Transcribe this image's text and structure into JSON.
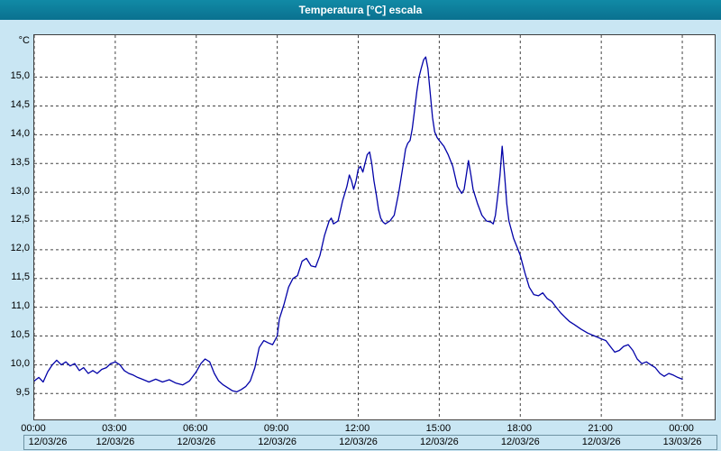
{
  "window": {
    "title": "Temperatura [°C] escala"
  },
  "chart_data": {
    "type": "line",
    "title": "Temperatura [°C] escala",
    "ylabel": "°C",
    "xlabel": "",
    "grid": true,
    "legend": "none",
    "xlim": [
      0,
      25.2
    ],
    "ylim": [
      9.05,
      15.73
    ],
    "colors": {
      "line": "#0202a8",
      "grid": "#444444",
      "plot_background": "#ffffff",
      "page_background": "#c9e6f3",
      "titlebar": "#0a7190"
    },
    "y_ticks": [
      {
        "v": 9.5,
        "label": "9,5"
      },
      {
        "v": 10.0,
        "label": "10,0"
      },
      {
        "v": 10.5,
        "label": "10,5"
      },
      {
        "v": 11.0,
        "label": "11,0"
      },
      {
        "v": 11.5,
        "label": "11,5"
      },
      {
        "v": 12.0,
        "label": "12,0"
      },
      {
        "v": 12.5,
        "label": "12,5"
      },
      {
        "v": 13.0,
        "label": "13,0"
      },
      {
        "v": 13.5,
        "label": "13,5"
      },
      {
        "v": 14.0,
        "label": "14,0"
      },
      {
        "v": 14.5,
        "label": "14,5"
      },
      {
        "v": 15.0,
        "label": "15,0"
      }
    ],
    "x_ticks": [
      {
        "hour": 0,
        "time": "00:00",
        "date": "12/03/26"
      },
      {
        "hour": 3,
        "time": "03:00",
        "date": "12/03/26"
      },
      {
        "hour": 6,
        "time": "06:00",
        "date": "12/03/26"
      },
      {
        "hour": 9,
        "time": "09:00",
        "date": "12/03/26"
      },
      {
        "hour": 12,
        "time": "12:00",
        "date": "12/03/26"
      },
      {
        "hour": 15,
        "time": "15:00",
        "date": "12/03/26"
      },
      {
        "hour": 18,
        "time": "18:00",
        "date": "12/03/26"
      },
      {
        "hour": 21,
        "time": "21:00",
        "date": "12/03/26"
      },
      {
        "hour": 24,
        "time": "00:00",
        "date": "13/03/26"
      }
    ],
    "series": [
      {
        "name": "Temperatura",
        "color": "#0202a8",
        "points": [
          [
            0,
            9.72
          ],
          [
            0.17,
            9.78
          ],
          [
            0.33,
            9.7
          ],
          [
            0.5,
            9.88
          ],
          [
            0.67,
            10.0
          ],
          [
            0.83,
            10.08
          ],
          [
            1,
            10.0
          ],
          [
            1.17,
            10.05
          ],
          [
            1.33,
            9.98
          ],
          [
            1.5,
            10.02
          ],
          [
            1.67,
            9.9
          ],
          [
            1.83,
            9.95
          ],
          [
            2,
            9.85
          ],
          [
            2.17,
            9.9
          ],
          [
            2.33,
            9.85
          ],
          [
            2.5,
            9.92
          ],
          [
            2.67,
            9.95
          ],
          [
            2.83,
            10.02
          ],
          [
            3,
            10.05
          ],
          [
            3.17,
            10.0
          ],
          [
            3.33,
            9.9
          ],
          [
            3.5,
            9.85
          ],
          [
            3.67,
            9.82
          ],
          [
            3.83,
            9.78
          ],
          [
            4,
            9.75
          ],
          [
            4.25,
            9.7
          ],
          [
            4.5,
            9.75
          ],
          [
            4.75,
            9.7
          ],
          [
            5,
            9.74
          ],
          [
            5.25,
            9.68
          ],
          [
            5.5,
            9.65
          ],
          [
            5.75,
            9.72
          ],
          [
            6,
            9.88
          ],
          [
            6.17,
            10.02
          ],
          [
            6.33,
            10.1
          ],
          [
            6.5,
            10.05
          ],
          [
            6.67,
            9.85
          ],
          [
            6.83,
            9.72
          ],
          [
            7,
            9.65
          ],
          [
            7.17,
            9.6
          ],
          [
            7.33,
            9.55
          ],
          [
            7.5,
            9.53
          ],
          [
            7.67,
            9.57
          ],
          [
            7.83,
            9.62
          ],
          [
            8,
            9.72
          ],
          [
            8.17,
            9.95
          ],
          [
            8.33,
            10.3
          ],
          [
            8.5,
            10.42
          ],
          [
            8.67,
            10.38
          ],
          [
            8.83,
            10.35
          ],
          [
            9,
            10.5
          ],
          [
            9.08,
            10.8
          ],
          [
            9.25,
            11.05
          ],
          [
            9.42,
            11.35
          ],
          [
            9.58,
            11.5
          ],
          [
            9.75,
            11.55
          ],
          [
            9.92,
            11.8
          ],
          [
            10.08,
            11.85
          ],
          [
            10.25,
            11.72
          ],
          [
            10.42,
            11.7
          ],
          [
            10.58,
            11.9
          ],
          [
            10.75,
            12.25
          ],
          [
            10.92,
            12.5
          ],
          [
            11,
            12.55
          ],
          [
            11.08,
            12.45
          ],
          [
            11.25,
            12.5
          ],
          [
            11.42,
            12.85
          ],
          [
            11.58,
            13.1
          ],
          [
            11.67,
            13.3
          ],
          [
            11.75,
            13.2
          ],
          [
            11.83,
            13.05
          ],
          [
            11.92,
            13.2
          ],
          [
            12,
            13.4
          ],
          [
            12.08,
            13.45
          ],
          [
            12.17,
            13.35
          ],
          [
            12.25,
            13.5
          ],
          [
            12.33,
            13.65
          ],
          [
            12.42,
            13.7
          ],
          [
            12.5,
            13.5
          ],
          [
            12.58,
            13.2
          ],
          [
            12.67,
            12.95
          ],
          [
            12.75,
            12.7
          ],
          [
            12.83,
            12.55
          ],
          [
            12.92,
            12.48
          ],
          [
            13,
            12.45
          ],
          [
            13.17,
            12.5
          ],
          [
            13.33,
            12.6
          ],
          [
            13.5,
            13.0
          ],
          [
            13.67,
            13.5
          ],
          [
            13.75,
            13.75
          ],
          [
            13.83,
            13.85
          ],
          [
            13.92,
            13.9
          ],
          [
            14,
            14.1
          ],
          [
            14.08,
            14.4
          ],
          [
            14.17,
            14.75
          ],
          [
            14.25,
            15.0
          ],
          [
            14.33,
            15.15
          ],
          [
            14.42,
            15.3
          ],
          [
            14.5,
            15.35
          ],
          [
            14.58,
            15.15
          ],
          [
            14.67,
            14.7
          ],
          [
            14.75,
            14.3
          ],
          [
            14.83,
            14.05
          ],
          [
            14.92,
            13.95
          ],
          [
            15,
            13.9
          ],
          [
            15.17,
            13.8
          ],
          [
            15.33,
            13.65
          ],
          [
            15.5,
            13.45
          ],
          [
            15.67,
            13.1
          ],
          [
            15.83,
            12.98
          ],
          [
            15.92,
            13.05
          ],
          [
            16,
            13.3
          ],
          [
            16.08,
            13.55
          ],
          [
            16.17,
            13.3
          ],
          [
            16.25,
            13.05
          ],
          [
            16.42,
            12.8
          ],
          [
            16.58,
            12.6
          ],
          [
            16.75,
            12.5
          ],
          [
            16.92,
            12.48
          ],
          [
            17,
            12.45
          ],
          [
            17.08,
            12.6
          ],
          [
            17.17,
            12.95
          ],
          [
            17.25,
            13.3
          ],
          [
            17.33,
            13.8
          ],
          [
            17.42,
            13.3
          ],
          [
            17.5,
            12.8
          ],
          [
            17.58,
            12.5
          ],
          [
            17.75,
            12.2
          ],
          [
            17.92,
            12.0
          ],
          [
            18,
            11.9
          ],
          [
            18.17,
            11.6
          ],
          [
            18.33,
            11.35
          ],
          [
            18.5,
            11.22
          ],
          [
            18.67,
            11.2
          ],
          [
            18.83,
            11.25
          ],
          [
            19,
            11.15
          ],
          [
            19.17,
            11.1
          ],
          [
            19.33,
            11.0
          ],
          [
            19.5,
            10.9
          ],
          [
            19.67,
            10.82
          ],
          [
            19.83,
            10.75
          ],
          [
            20,
            10.7
          ],
          [
            20.25,
            10.62
          ],
          [
            20.5,
            10.55
          ],
          [
            20.75,
            10.5
          ],
          [
            21,
            10.45
          ],
          [
            21.17,
            10.42
          ],
          [
            21.33,
            10.32
          ],
          [
            21.5,
            10.22
          ],
          [
            21.67,
            10.25
          ],
          [
            21.83,
            10.32
          ],
          [
            22,
            10.35
          ],
          [
            22.17,
            10.25
          ],
          [
            22.33,
            10.1
          ],
          [
            22.5,
            10.02
          ],
          [
            22.67,
            10.05
          ],
          [
            22.83,
            10.0
          ],
          [
            23,
            9.95
          ],
          [
            23.17,
            9.85
          ],
          [
            23.33,
            9.8
          ],
          [
            23.5,
            9.85
          ],
          [
            23.67,
            9.82
          ],
          [
            23.83,
            9.78
          ],
          [
            24,
            9.75
          ]
        ]
      }
    ]
  }
}
